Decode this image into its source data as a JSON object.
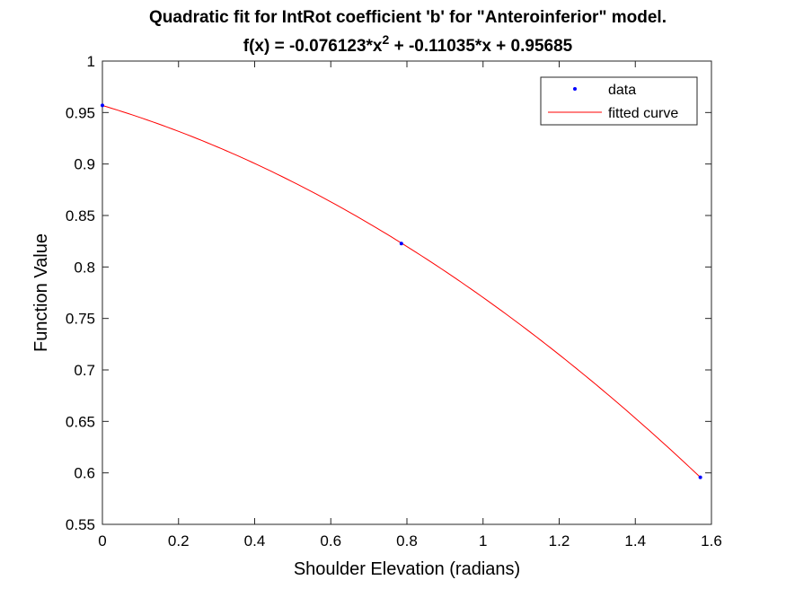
{
  "chart_data": {
    "type": "scatter",
    "title": "Quadratic fit for IntRot coefficient 'b' for \"Anteroinferior\" model.",
    "equation": {
      "prefix": "f(x) = -0.076123*x",
      "exponent": "2",
      "suffix": " + -0.11035*x + 0.95685"
    },
    "xlabel": "Shoulder Elevation (radians)",
    "ylabel": "Function Value",
    "xlim": [
      0,
      1.6
    ],
    "ylim": [
      0.55,
      1
    ],
    "xticks": [
      "0",
      "0.2",
      "0.4",
      "0.6",
      "0.8",
      "1",
      "1.2",
      "1.4",
      "1.6"
    ],
    "yticks": [
      "0.55",
      "0.6",
      "0.65",
      "0.7",
      "0.75",
      "0.8",
      "0.85",
      "0.9",
      "0.95",
      "1"
    ],
    "grid": false,
    "legend_position": "top-right",
    "series": [
      {
        "name": "data",
        "kind": "markers",
        "color": "#0000ff",
        "x": [
          0,
          0.7854,
          1.5708
        ],
        "y": [
          0.9569,
          0.8228,
          0.5957
        ]
      },
      {
        "name": "fitted curve",
        "kind": "line",
        "color": "#ff0000",
        "coefficients": [
          -0.076123,
          -0.11035,
          0.95685
        ],
        "x_range": [
          0,
          1.5708
        ]
      }
    ]
  }
}
